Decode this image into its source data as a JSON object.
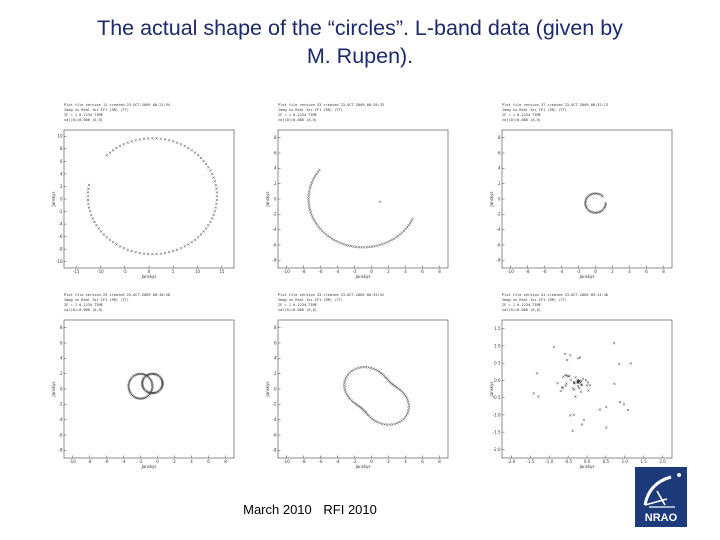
{
  "title": {
    "line1": "The actual shape of the “circles”. L-band data (given by",
    "line2": "M. Rupen)."
  },
  "footer": {
    "date": "March 2010",
    "event": "RFI 2010"
  },
  "logo": {
    "text": "NRAO",
    "icon": "nrao-radio-dish-logo"
  },
  "plots": [
    {
      "id": "plot-1",
      "header": [
        "Plot file version 11 created 23-OCT-2009 08:21:54",
        "Imag vs Real for IF1 (RR) (TT)",
        "IF = 1 0.1234 TIME  ",
        "cal(0)=0.000 (0,0)"
      ],
      "xlabel": "Janskys",
      "ylabel": "Janskys",
      "xticks": [
        "-15",
        "-10",
        "-5",
        "0",
        "5",
        "10",
        "15"
      ],
      "yticks": [
        "10",
        "8",
        "6",
        "4",
        "2",
        "0",
        "-2",
        "-4",
        "-6",
        "-8",
        "-10"
      ]
    },
    {
      "id": "plot-2",
      "header": [
        "Plot file version 33 created 23-OCT-2009 08:29:33",
        "Imag vs Real for IF1 (RR) (TT)",
        "IF = 1 0.1234 TIME  ",
        "cal(0)=0.000 (0,0)"
      ],
      "xlabel": "Janskys",
      "ylabel": "Janskys",
      "xticks": [
        "-10",
        "-8",
        "-6",
        "-4",
        "-2",
        "0",
        "2",
        "4",
        "6",
        "8"
      ],
      "yticks": [
        "8",
        "6",
        "4",
        "2",
        "0",
        "-2",
        "-4",
        "-6",
        "-8"
      ]
    },
    {
      "id": "plot-3",
      "header": [
        "Plot file version 37 created 23-OCT-2009 08:32:13",
        "Imag vs Real for IF1 (RR) (TT)",
        "IF = 1 0.1234 TIME  ",
        "cal(0)=0.000 (0,0)"
      ],
      "xlabel": "Janskys",
      "ylabel": "Janskys",
      "xticks": [
        "-10",
        "-8",
        "-6",
        "-4",
        "-2",
        "0",
        "2",
        "4",
        "6",
        "8"
      ],
      "yticks": [
        "8",
        "6",
        "4",
        "2",
        "0",
        "-2",
        "-4",
        "-6",
        "-8"
      ]
    },
    {
      "id": "plot-4",
      "header": [
        "Plot file version 29 created 23-OCT-2009 08:30:58",
        "Imag vs Real for IF1 (RR) (TT)",
        "IF = 1 0.1234 TIME  ",
        "cal(0)=0.000 (0,0)"
      ],
      "xlabel": "Janskys",
      "ylabel": "Janskys",
      "xticks": [
        "-10",
        "-8",
        "-6",
        "-4",
        "-2",
        "0",
        "2",
        "4",
        "6",
        "8"
      ],
      "yticks": [
        "8",
        "6",
        "4",
        "2",
        "0",
        "-2",
        "-4",
        "-6",
        "-8"
      ]
    },
    {
      "id": "plot-5",
      "header": [
        "Plot file version 33 created 23-OCT-2009 08:33:52",
        "Imag vs Real for IF1 (RR) (TT)",
        "IF = 1 0.1234 TIME  ",
        "cal(0)=0.000 (0,0)"
      ],
      "xlabel": "Janskys",
      "ylabel": "Janskys",
      "xticks": [
        "-10",
        "-8",
        "-6",
        "-4",
        "-2",
        "0",
        "2",
        "4",
        "6",
        "8"
      ],
      "yticks": [
        "8",
        "6",
        "4",
        "2",
        "0",
        "-2",
        "-4",
        "-6",
        "-8"
      ]
    },
    {
      "id": "plot-6",
      "header": [
        "Plot file version 41 created 23-OCT-2009 09:14:46",
        "Imag vs Real for IF1 (RR) (TT)",
        "IF = 1 0.1234 TIME  ",
        "cal(0)=0.000 (0,0)"
      ],
      "xlabel": "Janskys",
      "ylabel": "Janskys",
      "xticks": [
        "-2.0",
        "-1.5",
        "-1.0",
        "-0.5",
        "0.0",
        "0.5",
        "1.0",
        "1.5",
        "2.0"
      ],
      "yticks": [
        "1.5",
        "1.0",
        "0.5",
        "0.0",
        "-0.5",
        "-1.0",
        "-1.5",
        "-2.0"
      ]
    }
  ]
}
